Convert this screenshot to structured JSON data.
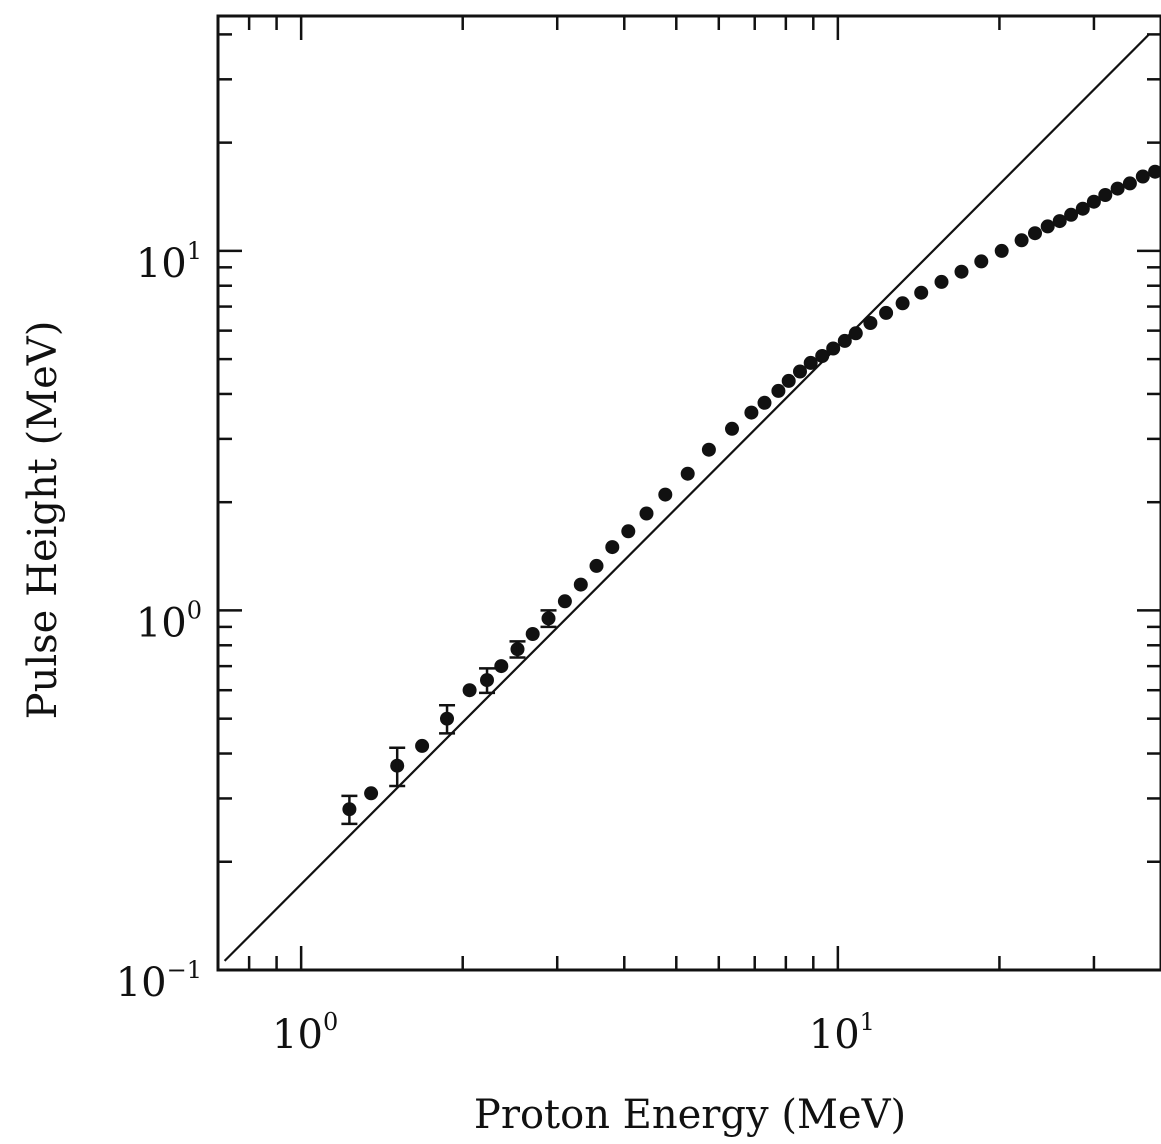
{
  "chart_data": {
    "type": "scatter",
    "title": "",
    "xlabel": "Proton Energy (MeV)",
    "ylabel": "Pulse Height (MeV)",
    "x_scale": "log",
    "y_scale": "log",
    "xlim": [
      0.7,
      40
    ],
    "ylim": [
      0.1,
      45
    ],
    "x_ticks": [
      {
        "value": 1,
        "base": "10",
        "exp": "0"
      },
      {
        "value": 10,
        "base": "10",
        "exp": "1"
      }
    ],
    "y_ticks": [
      {
        "value": 0.1,
        "base": "10",
        "exp": "−1"
      },
      {
        "value": 1,
        "base": "10",
        "exp": "0"
      },
      {
        "value": 10,
        "base": "10",
        "exp": "1"
      }
    ],
    "grid": false,
    "colors": {
      "line": "#111111",
      "points": "#111111",
      "axes": "#111111"
    },
    "series": [
      {
        "type": "line",
        "x": [
          0.72,
          38
        ],
        "y": [
          0.106,
          40
        ]
      },
      {
        "type": "scatter",
        "x": [
          1.23,
          1.35,
          1.51,
          1.68,
          1.87,
          2.06,
          2.22,
          2.36,
          2.53,
          2.7,
          2.89,
          3.1,
          3.32,
          3.55,
          3.8,
          4.07,
          4.4,
          4.77,
          5.25,
          5.75,
          6.35,
          6.9,
          7.3,
          7.75,
          8.1,
          8.5,
          8.9,
          9.35,
          9.8,
          10.3,
          10.8,
          11.5,
          12.3,
          13.2,
          14.3,
          15.6,
          17.0,
          18.5,
          20.2,
          22.0,
          23.3,
          24.6,
          25.9,
          27.2,
          28.6,
          30.0,
          31.5,
          33.2,
          35.0,
          37.0,
          39.0
        ],
        "y": [
          0.28,
          0.31,
          0.37,
          0.42,
          0.5,
          0.6,
          0.64,
          0.7,
          0.78,
          0.86,
          0.95,
          1.06,
          1.18,
          1.33,
          1.5,
          1.66,
          1.86,
          2.1,
          2.4,
          2.8,
          3.2,
          3.55,
          3.78,
          4.08,
          4.35,
          4.62,
          4.88,
          5.1,
          5.35,
          5.62,
          5.9,
          6.3,
          6.72,
          7.15,
          7.65,
          8.2,
          8.75,
          9.35,
          10.0,
          10.7,
          11.2,
          11.7,
          12.1,
          12.6,
          13.1,
          13.7,
          14.3,
          14.9,
          15.4,
          16.1,
          16.6
        ]
      },
      {
        "type": "errorbars",
        "x": [
          1.23,
          1.51,
          1.87,
          2.22,
          2.53,
          2.89
        ],
        "y": [
          0.28,
          0.37,
          0.5,
          0.64,
          0.78,
          0.95
        ],
        "err_low": [
          0.025,
          0.045,
          0.045,
          0.05,
          0.04,
          0.05
        ],
        "err_high": [
          0.025,
          0.045,
          0.045,
          0.05,
          0.04,
          0.05
        ]
      }
    ]
  }
}
